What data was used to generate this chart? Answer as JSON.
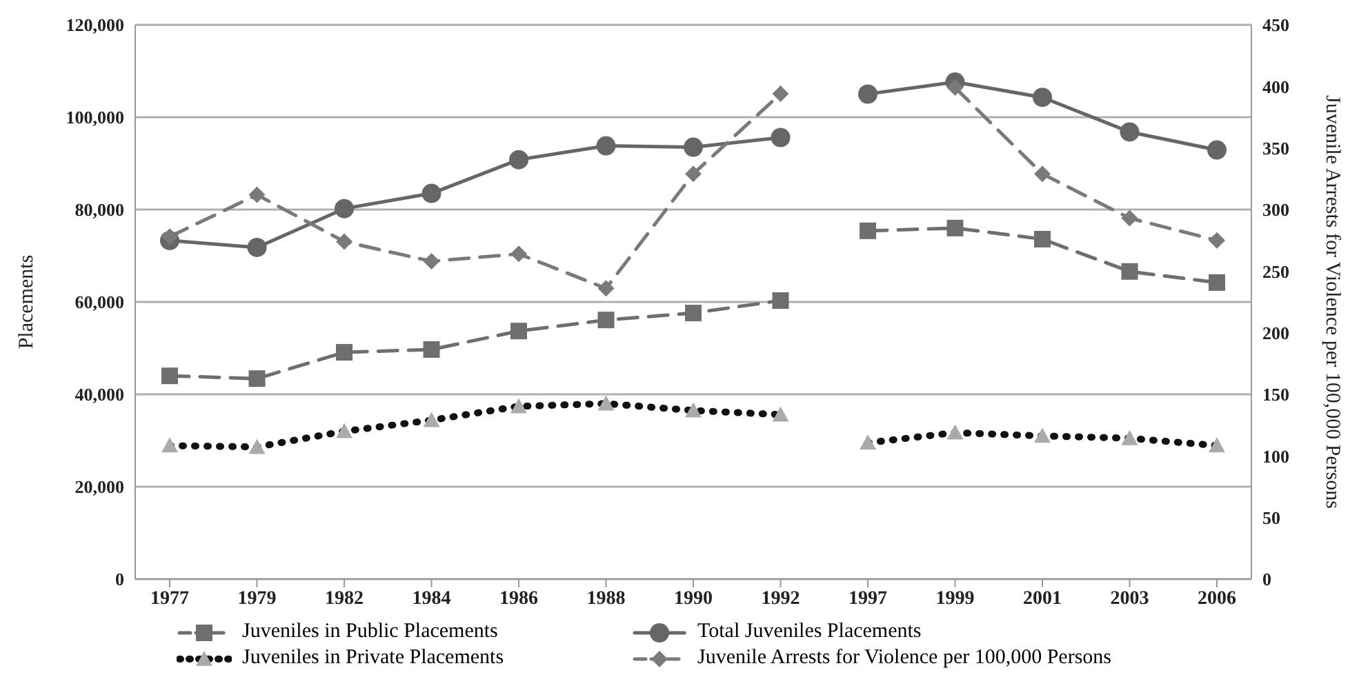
{
  "chart_data": {
    "type": "line",
    "categories": [
      "1977",
      "1979",
      "1982",
      "1984",
      "1986",
      "1988",
      "1990",
      "1992",
      "1997",
      "1999",
      "2001",
      "2003",
      "2006"
    ],
    "ylabel": "Placements",
    "y2label": "Juvenile Arrests for Violence per 100,000 Persons",
    "ylim": [
      0,
      120000
    ],
    "yticks": [
      {
        "value": 0,
        "label": "0"
      },
      {
        "value": 20000,
        "label": "20,000"
      },
      {
        "value": 40000,
        "label": "40,000"
      },
      {
        "value": 60000,
        "label": "60,000"
      },
      {
        "value": 80000,
        "label": "80,000"
      },
      {
        "value": 100000,
        "label": "100,000"
      },
      {
        "value": 120000,
        "label": "120,000"
      }
    ],
    "y2lim": [
      0,
      450
    ],
    "y2ticks": [
      0,
      50,
      100,
      150,
      200,
      250,
      300,
      350,
      400,
      450
    ],
    "grid": "y",
    "legend": "bottom",
    "series": [
      {
        "name": "Juveniles in Public Placements",
        "color": "#6e6e6e",
        "line_style": "dashed",
        "marker": "square",
        "values": [
          44000,
          43400,
          49100,
          49700,
          53700,
          56100,
          57600,
          60300,
          null,
          null,
          null,
          null,
          null
        ]
      },
      {
        "name": "Total Juveniles Placements",
        "color": "#666666",
        "line_style": "solid",
        "marker": "circle",
        "values": [
          73300,
          71800,
          80200,
          83500,
          90800,
          93800,
          93500,
          95600,
          null,
          null,
          null,
          null,
          null
        ]
      },
      {
        "name": "Juveniles in Private Placements",
        "color": "#111111",
        "line_style": "dotted",
        "marker": "triangle",
        "values": [
          28900,
          28600,
          32000,
          34400,
          37400,
          38000,
          36500,
          35600,
          null,
          null,
          null,
          null,
          null
        ]
      },
      {
        "name": "Juvenile Arrests for Violence per 100,000 Persons",
        "color": "#7a7a7a",
        "line_style": "dashed",
        "marker": "diamond",
        "axis": "y2",
        "values": [
          278,
          312,
          274,
          258,
          264,
          236,
          329,
          394,
          null,
          null,
          null,
          null,
          null
        ]
      },
      {
        "color": "#6e6e6e",
        "line_style": "dashed",
        "marker": "square",
        "values": [
          null,
          null,
          null,
          null,
          null,
          null,
          null,
          null,
          75400,
          76000,
          73600,
          66600,
          64200
        ]
      },
      {
        "color": "#666666",
        "line_style": "solid",
        "marker": "circle",
        "values": [
          null,
          null,
          null,
          null,
          null,
          null,
          null,
          null,
          105000,
          107600,
          104300,
          96800,
          92900
        ]
      },
      {
        "color": "#111111",
        "line_style": "dotted",
        "marker": "triangle",
        "values": [
          null,
          null,
          null,
          null,
          null,
          null,
          null,
          null,
          29500,
          31700,
          31000,
          30500,
          28900
        ]
      },
      {
        "color": "#7a7a7a",
        "line_style": "dashed",
        "marker": "diamond",
        "axis": "y2",
        "values": [
          null,
          null,
          null,
          null,
          null,
          null,
          null,
          null,
          null,
          399,
          329,
          293,
          275
        ]
      }
    ]
  }
}
